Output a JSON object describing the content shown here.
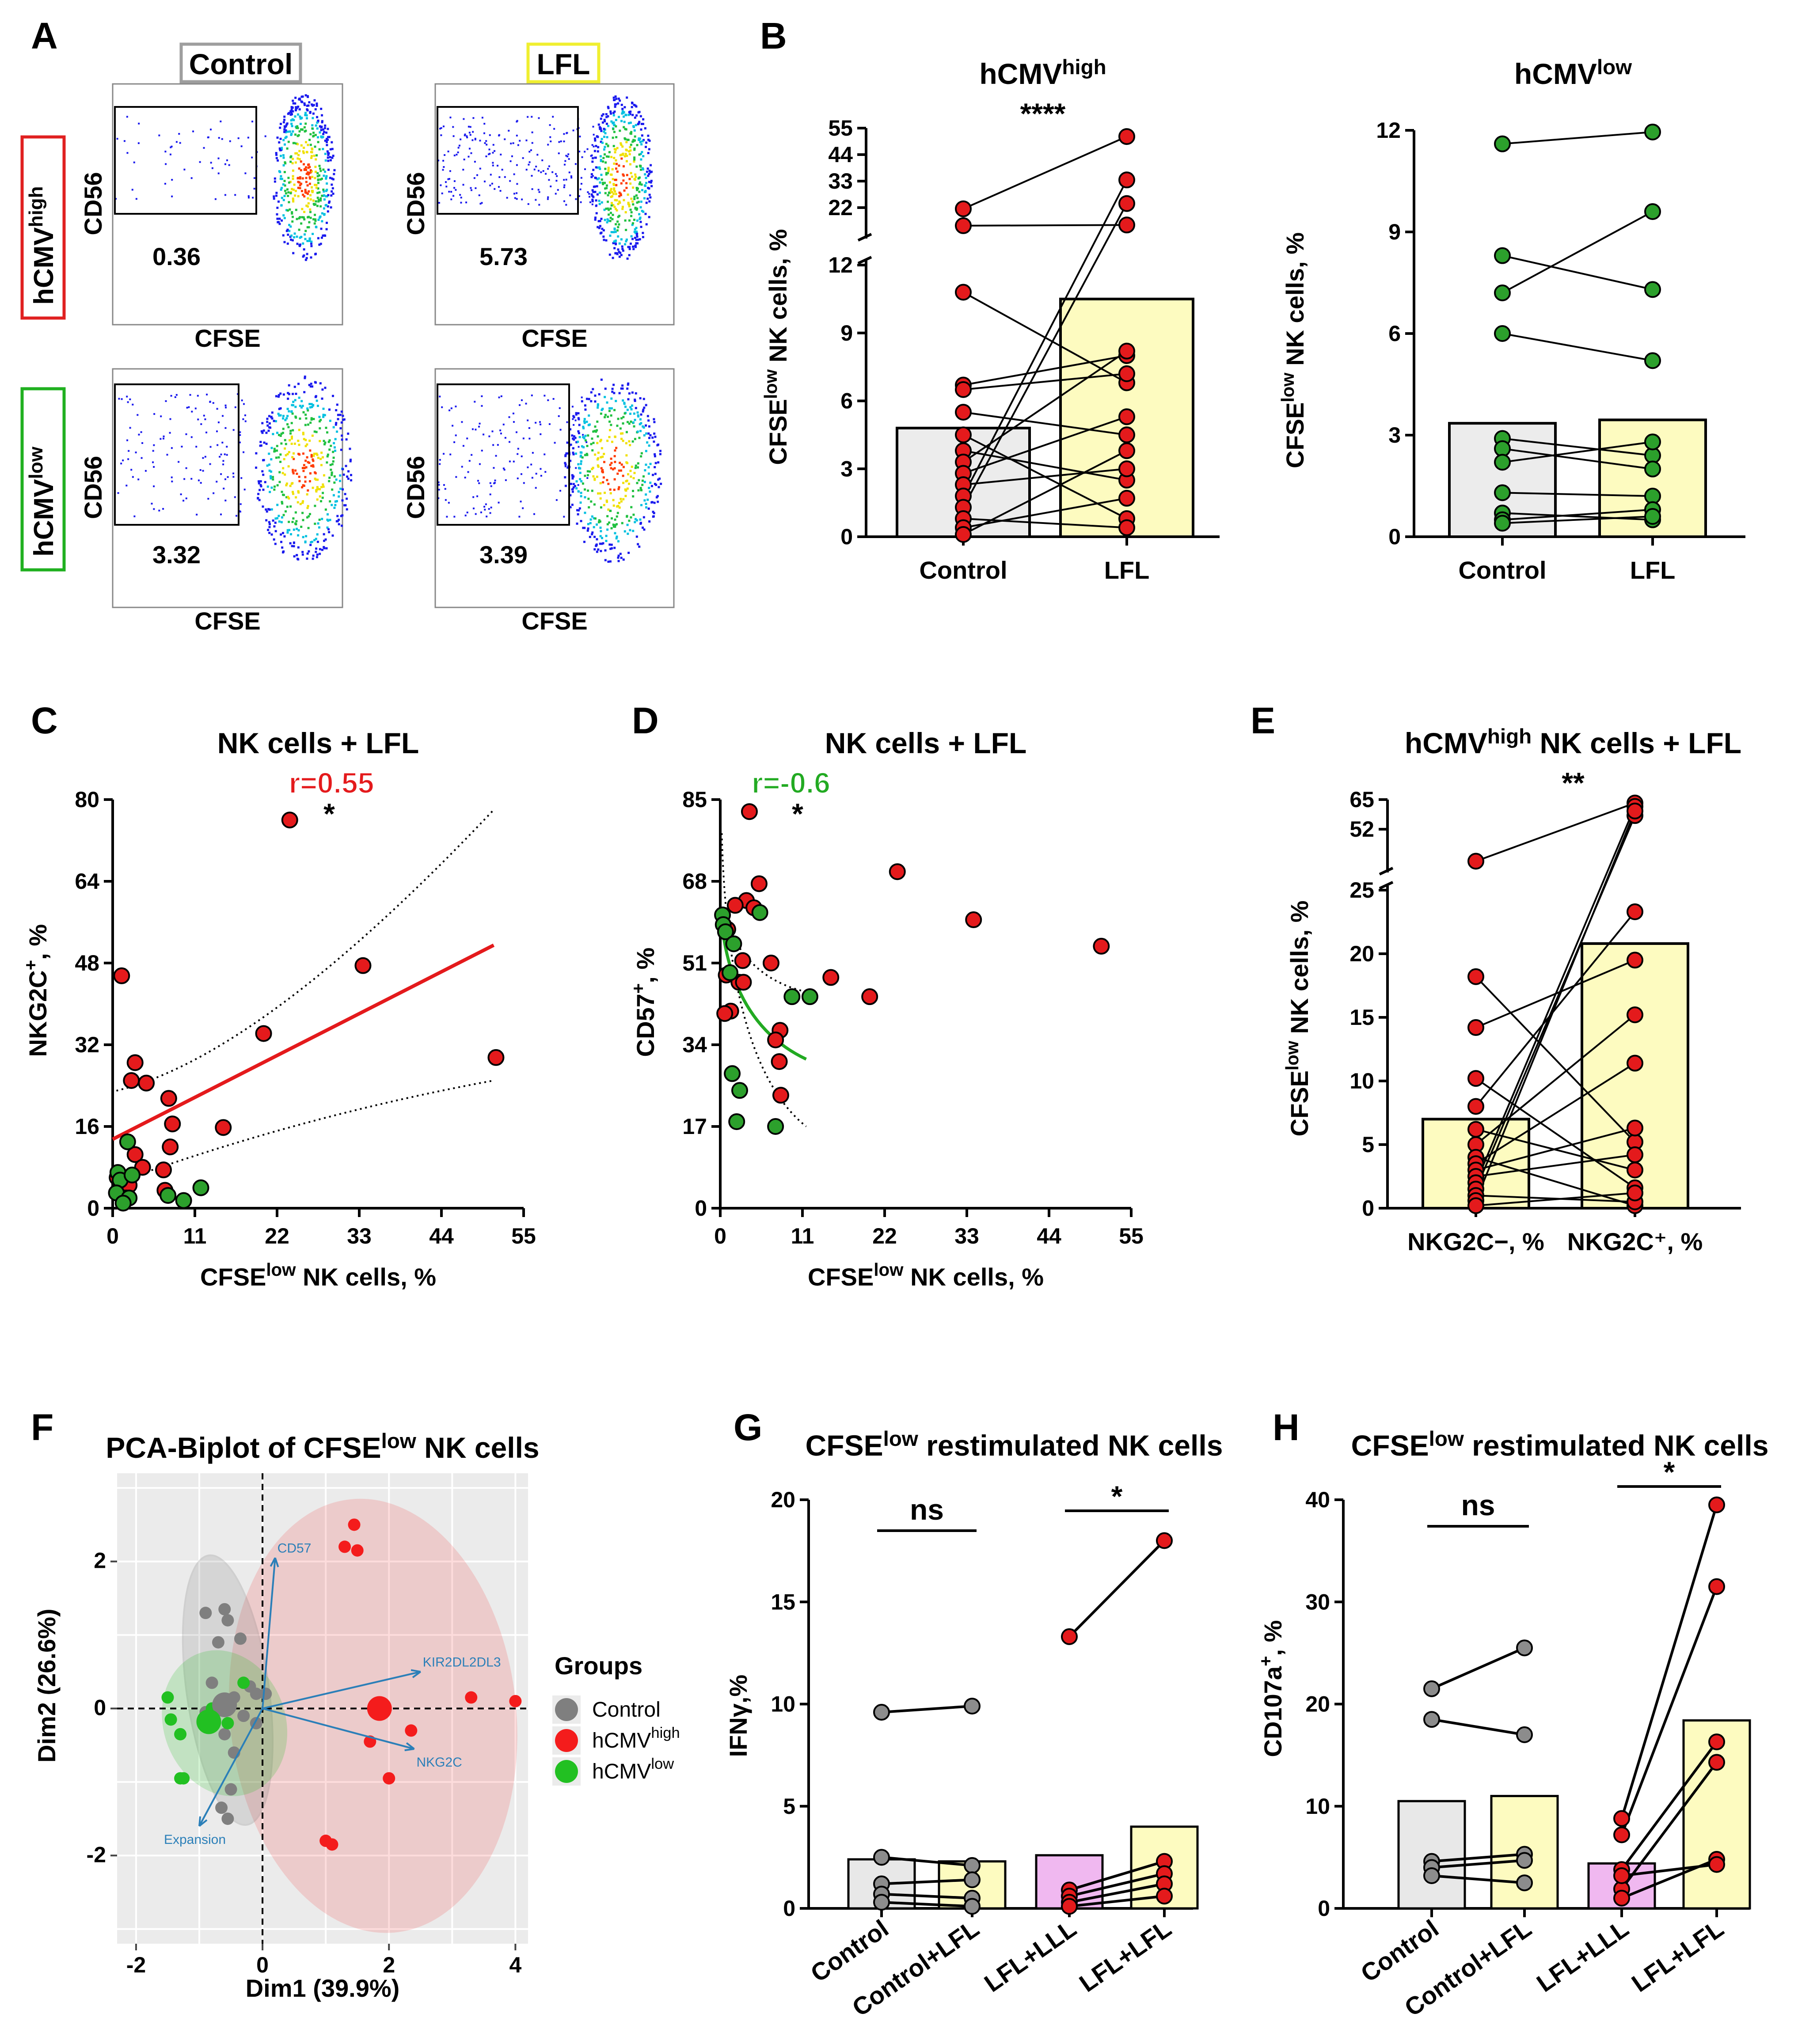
{
  "panels": {
    "A": {
      "letter": "A",
      "col_labels": [
        "Control",
        "LFL"
      ],
      "row_labels": [
        "hCMV",
        "hCMV"
      ],
      "row_sups": [
        "high",
        "low"
      ],
      "axis_x": "CFSE",
      "axis_y": "CD56",
      "values": [
        "0.36",
        "5.73",
        "3.32",
        "3.39"
      ],
      "colors": {
        "control_box": "#9e9e9e",
        "lfl_box": "#f5f542",
        "high_box": "#e02020",
        "low_box": "#20b020"
      }
    },
    "B": {
      "letter": "B"
    },
    "C": {
      "letter": "C"
    },
    "D": {
      "letter": "D"
    },
    "E": {
      "letter": "E"
    },
    "F": {
      "letter": "F"
    },
    "G": {
      "letter": "G"
    },
    "H": {
      "letter": "H"
    }
  },
  "chart_data": [
    {
      "id": "B1",
      "type": "bar",
      "title": "hCMV",
      "title_sup": "high",
      "significance": "****",
      "ylabel": "CFSE",
      "ylabel_sup": "low",
      "ylabel_rest": " NK cells, %",
      "categories": [
        "Control",
        "LFL"
      ],
      "bar_values": [
        4.8,
        10.5
      ],
      "yticks_low": [
        0,
        3,
        6,
        9,
        12
      ],
      "yticks_high": [
        22,
        33,
        44,
        55
      ],
      "control": [
        21.5,
        14.5,
        10.8,
        6.7,
        6.5,
        5.5,
        4.5,
        3.8,
        3.3,
        2.8,
        2.3,
        1.8,
        1.3,
        0.8,
        0.4,
        0.1
      ],
      "lfl": [
        51.5,
        14.8,
        6.8,
        8.0,
        7.2,
        4.5,
        0.8,
        2.5,
        8.2,
        5.3,
        3.0,
        33.5,
        23.7,
        0.4,
        1.7,
        3.8
      ]
    },
    {
      "id": "B2",
      "type": "bar",
      "title": "hCMV",
      "title_sup": "low",
      "ylabel": "CFSE",
      "ylabel_sup": "low",
      "ylabel_rest": " NK cells, %",
      "categories": [
        "Control",
        "LFL"
      ],
      "bar_values": [
        3.35,
        3.45
      ],
      "yticks": [
        0,
        3,
        6,
        9,
        12
      ],
      "ylim": [
        0,
        12
      ],
      "control": [
        11.6,
        8.3,
        7.2,
        6.0,
        2.9,
        2.6,
        2.2,
        1.3,
        0.7,
        0.5,
        0.4
      ],
      "lfl": [
        11.95,
        7.3,
        9.6,
        5.2,
        2.4,
        2.0,
        2.8,
        1.2,
        0.5,
        0.8,
        0.6
      ]
    },
    {
      "id": "C",
      "type": "scatter",
      "title": "NK cells + LFL",
      "r_label": "r=0.55",
      "significance": "*",
      "xlabel": "CFSE",
      "xlabel_sup": "low",
      "xlabel_rest": " NK cells, %",
      "ylabel": "NKG2C",
      "ylabel_sup": "+",
      "ylabel_rest": ", %",
      "xlim": [
        0,
        55
      ],
      "ylim": [
        0,
        80
      ],
      "xticks": [
        0,
        11,
        22,
        33,
        44,
        55
      ],
      "yticks": [
        0,
        16,
        32,
        48,
        64,
        80
      ],
      "high_points": [
        [
          23.7,
          76
        ],
        [
          1.2,
          45.5
        ],
        [
          33.5,
          47.5
        ],
        [
          20.2,
          34.2
        ],
        [
          51.3,
          29.5
        ],
        [
          3,
          28.5
        ],
        [
          2.5,
          25
        ],
        [
          4.5,
          24.5
        ],
        [
          7.5,
          21.5
        ],
        [
          8,
          16.5
        ],
        [
          14.8,
          15.8
        ],
        [
          7.7,
          12
        ],
        [
          3,
          10.5
        ],
        [
          4,
          8
        ],
        [
          6.8,
          7.5
        ],
        [
          1.2,
          5
        ],
        [
          2.2,
          4.5
        ],
        [
          7,
          3.5
        ],
        [
          1.8,
          2
        ],
        [
          0.6,
          6
        ]
      ],
      "low_points": [
        [
          2,
          13
        ],
        [
          0.7,
          7
        ],
        [
          1,
          5.5
        ],
        [
          2.6,
          6.5
        ],
        [
          11.8,
          4
        ],
        [
          0.5,
          3
        ],
        [
          2.2,
          2
        ],
        [
          9.5,
          1.5
        ],
        [
          1.4,
          1
        ],
        [
          7.4,
          2.5
        ]
      ],
      "fit": {
        "x0": 0,
        "y0": 13.5,
        "x1": 51,
        "y1": 51.5
      },
      "colors": {
        "high": "#e41a1c",
        "low": "#2ca02c",
        "fit": "#e41a1c"
      }
    },
    {
      "id": "D",
      "type": "scatter",
      "title": "NK cells + LFL",
      "r_label": "r=-0.6",
      "significance": "*",
      "xlabel": "CFSE",
      "xlabel_sup": "low",
      "xlabel_rest": " NK cells, %",
      "ylabel": "CD57",
      "ylabel_sup": "+",
      "ylabel_rest": ", %",
      "xlim": [
        0,
        55
      ],
      "ylim": [
        0,
        85
      ],
      "xticks": [
        0,
        11,
        22,
        33,
        44,
        55
      ],
      "yticks": [
        0,
        17,
        34,
        51,
        68,
        85
      ],
      "high_points": [
        [
          3.9,
          82.5
        ],
        [
          23.7,
          70
        ],
        [
          5.2,
          67.5
        ],
        [
          3.5,
          64
        ],
        [
          2,
          63
        ],
        [
          4.5,
          62.5
        ],
        [
          33.9,
          60
        ],
        [
          51,
          54.5
        ],
        [
          1,
          58
        ],
        [
          6.8,
          51
        ],
        [
          3,
          51.5
        ],
        [
          0.8,
          48.5
        ],
        [
          2.5,
          47
        ],
        [
          3.1,
          47
        ],
        [
          14.8,
          48
        ],
        [
          20,
          44
        ],
        [
          1.4,
          41
        ],
        [
          0.6,
          40.5
        ],
        [
          8,
          37
        ],
        [
          7.4,
          35
        ],
        [
          7.9,
          30.5
        ],
        [
          8.1,
          23.5
        ]
      ],
      "low_points": [
        [
          0.3,
          61
        ],
        [
          0.4,
          59
        ],
        [
          5.3,
          61.5
        ],
        [
          0.7,
          57.5
        ],
        [
          1.8,
          55
        ],
        [
          1.3,
          49
        ],
        [
          9.6,
          44
        ],
        [
          12,
          44
        ],
        [
          1.6,
          28
        ],
        [
          2.6,
          24.5
        ],
        [
          2.2,
          18
        ],
        [
          7.4,
          17
        ]
      ],
      "colors": {
        "high": "#e41a1c",
        "low": "#2ca02c",
        "fit": "#22aa22"
      }
    },
    {
      "id": "E",
      "type": "bar",
      "title": "hCMV",
      "title_sup": "high",
      "title_rest": " NK cells + LFL",
      "significance": "**",
      "ylabel": "CFSE",
      "ylabel_sup": "low",
      "ylabel_rest": " NK cells, %",
      "categories": [
        "NKG2C−, %",
        "NKG2C⁺, %"
      ],
      "bar_values": [
        7.0,
        20.8
      ],
      "yticks_low": [
        0,
        5,
        10,
        15,
        20,
        25
      ],
      "yticks_high": [
        52,
        65
      ],
      "neg": [
        38,
        18.2,
        14.2,
        10.2,
        8.0,
        6.2,
        5.0,
        4.0,
        3.5,
        3.0,
        2.5,
        2.0,
        1.5,
        1.0,
        0.6,
        0.2
      ],
      "pos": [
        63.5,
        5.2,
        19.5,
        1.6,
        23.3,
        3.0,
        15.2,
        0.2,
        11.4,
        6.3,
        4.2,
        62,
        58,
        0.5,
        60,
        1.2
      ]
    },
    {
      "id": "F",
      "type": "scatter",
      "title": "PCA-Biplot of CFSE",
      "title_sup": "low",
      "title_rest": " NK cells",
      "xlabel": "Dim1 (39.9%)",
      "ylabel": "Dim2 (26.6%)",
      "xlim": [
        -2.3,
        4.2
      ],
      "ylim": [
        -3.2,
        3.2
      ],
      "xticks": [
        -2,
        0,
        2,
        4
      ],
      "yticks": [
        -2,
        0,
        2
      ],
      "legend_title": "Groups",
      "legend": [
        {
          "name": "Control",
          "sup": ""
        },
        {
          "name": "hCMV",
          "sup": "high"
        },
        {
          "name": "hCMV",
          "sup": "low"
        }
      ],
      "arrows": [
        {
          "name": "CD57",
          "dx": 0.2,
          "dy": 2.05
        },
        {
          "name": "KIR2DL2DL3",
          "dx": 2.5,
          "dy": 0.5
        },
        {
          "name": "NKG2C",
          "dx": 2.4,
          "dy": -0.55
        },
        {
          "name": "Expansion",
          "dx": -1.0,
          "dy": -1.6
        }
      ],
      "control_points": [
        [
          -0.9,
          1.3
        ],
        [
          -0.6,
          1.35
        ],
        [
          -0.55,
          1.2
        ],
        [
          -0.7,
          0.9
        ],
        [
          -0.35,
          0.95
        ],
        [
          -0.2,
          0.3
        ],
        [
          -0.1,
          0.2
        ],
        [
          -0.3,
          -0.1
        ],
        [
          -0.45,
          0.15
        ],
        [
          -0.9,
          -0.05
        ],
        [
          -0.6,
          -0.35
        ],
        [
          -0.45,
          -0.6
        ],
        [
          -0.5,
          -1.1
        ],
        [
          -0.65,
          -1.35
        ],
        [
          -0.55,
          -1.5
        ],
        [
          -0.1,
          -0.2
        ],
        [
          0.05,
          0.2
        ],
        [
          -0.8,
          0.35
        ]
      ],
      "high_points": [
        [
          1.45,
          2.5
        ],
        [
          1.3,
          2.2
        ],
        [
          1.5,
          2.15
        ],
        [
          3.3,
          0.15
        ],
        [
          4.0,
          0.1
        ],
        [
          1.7,
          -0.45
        ],
        [
          2.35,
          -0.3
        ],
        [
          2.0,
          -0.95
        ],
        [
          1.0,
          -1.8
        ],
        [
          1.1,
          -1.85
        ]
      ],
      "low_points": [
        [
          -1.5,
          0.15
        ],
        [
          -1.45,
          -0.15
        ],
        [
          -1.3,
          -0.35
        ],
        [
          -1.25,
          -0.95
        ],
        [
          -1.3,
          -0.95
        ],
        [
          -0.8,
          0.0
        ],
        [
          -0.55,
          -0.2
        ],
        [
          -0.3,
          0.35
        ]
      ],
      "centroids": {
        "control": [
          -0.6,
          0.05
        ],
        "high": [
          1.85,
          0.0
        ],
        "low": [
          -0.85,
          -0.18
        ]
      },
      "colors": {
        "control": "#7f7f7f",
        "high": "#f41c1c",
        "low": "#22c022",
        "arrow": "#2b7fb8"
      }
    },
    {
      "id": "G",
      "type": "bar",
      "title": "CFSE",
      "title_sup": "low",
      "title_rest": " restimulated NK cells",
      "ylabel": "IFNγ,%",
      "categories": [
        "Control",
        "Control+LFL",
        "LFL+LLL",
        "LFL+LFL"
      ],
      "bar_values": [
        2.4,
        2.3,
        2.6,
        4.0
      ],
      "ylim": [
        0,
        20
      ],
      "yticks": [
        0,
        5,
        10,
        15,
        20
      ],
      "significance": [
        "ns",
        "*"
      ],
      "pairs_a": [
        [
          9.6,
          9.9
        ],
        [
          2.5,
          2.1
        ],
        [
          1.2,
          1.4
        ],
        [
          0.7,
          0.5
        ],
        [
          0.3,
          0.1
        ]
      ],
      "pairs_b": [
        [
          13.3,
          18.0
        ],
        [
          0.9,
          2.3
        ],
        [
          0.6,
          1.7
        ],
        [
          0.3,
          1.2
        ],
        [
          0.1,
          0.6
        ]
      ],
      "colors": {
        "control": "#e8e8e8",
        "lfl": "#fdfbc0",
        "lll": "#f0b8f0"
      }
    },
    {
      "id": "H",
      "type": "bar",
      "title": "CFSE",
      "title_sup": "low",
      "title_rest": " restimulated NK cells",
      "ylabel": "CD107a",
      "ylabel_sup": "+",
      "ylabel_rest": ", %",
      "categories": [
        "Control",
        "Control+LFL",
        "LFL+LLL",
        "LFL+LFL"
      ],
      "bar_values": [
        10.5,
        11.0,
        4.4,
        18.4
      ],
      "ylim": [
        0,
        40
      ],
      "yticks": [
        0,
        10,
        20,
        30,
        40
      ],
      "significance": [
        "ns",
        "*"
      ],
      "pairs_a": [
        [
          21.5,
          25.5
        ],
        [
          18.5,
          17.0
        ],
        [
          4.6,
          5.3
        ],
        [
          4.0,
          4.7
        ],
        [
          3.2,
          2.5
        ]
      ],
      "pairs_b": [
        [
          8.8,
          39.5
        ],
        [
          7.2,
          31.5
        ],
        [
          3.8,
          16.3
        ],
        [
          1.9,
          14.3
        ],
        [
          1.0,
          4.8
        ],
        [
          3.2,
          4.3
        ]
      ],
      "colors": {
        "control": "#e8e8e8",
        "lfl": "#fdfbc0",
        "lll": "#f0b8f0"
      }
    }
  ]
}
